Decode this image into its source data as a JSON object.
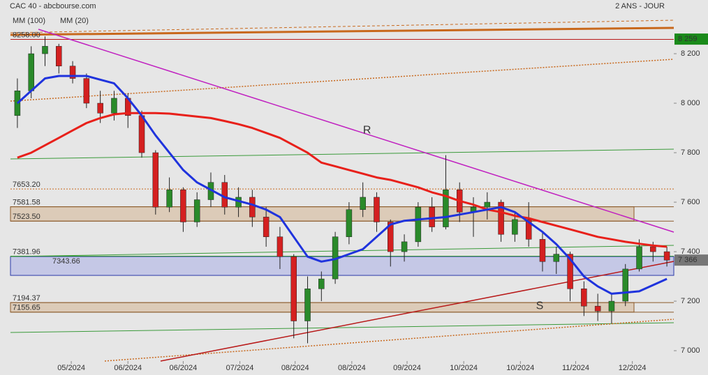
{
  "chart_data": {
    "type": "candlestick",
    "title": "CAC 40 - abcbourse.com",
    "subtitle": "2 ANS - JOUR",
    "x": [
      0.5,
      1.5,
      2.5,
      3.5,
      4.5,
      5.5,
      6.5,
      7.5,
      8.5,
      9.5,
      10.5,
      11.5,
      12.5,
      13.5,
      14.5,
      15.5,
      16.5,
      17.5,
      18.5,
      19.5,
      20.5,
      21.5,
      22.5,
      23.5,
      24.5,
      25.5,
      26.5,
      27.5,
      28.5,
      29.5,
      30.5,
      31.5,
      32.5,
      33.5,
      34.5,
      35.5,
      36.5,
      37.5,
      38.5,
      39.5,
      40.5,
      41.5,
      42.5,
      43.5,
      44.5,
      45.5,
      46.5,
      47.5
    ],
    "open": [
      7950,
      8050,
      8200,
      8230,
      8150,
      8100,
      8000,
      7960,
      8020,
      7950,
      7800,
      7580,
      7650,
      7520,
      7610,
      7680,
      7580,
      7620,
      7540,
      7460,
      7380,
      7120,
      7250,
      7290,
      7460,
      7570,
      7620,
      7520,
      7400,
      7440,
      7580,
      7500,
      7650,
      7560,
      7580,
      7600,
      7470,
      7530,
      7450,
      7360,
      7390,
      7250,
      7180,
      7160,
      7200,
      7330,
      7420,
      7400
    ],
    "high": [
      8100,
      8230,
      8270,
      8240,
      8170,
      8120,
      8050,
      8050,
      8040,
      7970,
      7810,
      7700,
      7660,
      7640,
      7720,
      7710,
      7660,
      7650,
      7580,
      7500,
      7390,
      7300,
      7320,
      7480,
      7600,
      7680,
      7640,
      7530,
      7470,
      7600,
      7620,
      7790,
      7680,
      7620,
      7640,
      7610,
      7560,
      7600,
      7480,
      7420,
      7400,
      7280,
      7230,
      7230,
      7350,
      7450,
      7440,
      7420
    ],
    "low": [
      7900,
      8020,
      8150,
      8120,
      8080,
      7980,
      7920,
      7930,
      7900,
      7780,
      7550,
      7560,
      7480,
      7500,
      7580,
      7550,
      7540,
      7500,
      7420,
      7330,
      7050,
      7030,
      7200,
      7270,
      7430,
      7540,
      7480,
      7340,
      7360,
      7420,
      7480,
      7490,
      7520,
      7460,
      7530,
      7440,
      7440,
      7420,
      7320,
      7310,
      7200,
      7140,
      7120,
      7110,
      7180,
      7320,
      7360,
      7340
    ],
    "close": [
      8050,
      8200,
      8230,
      8150,
      8100,
      8000,
      7960,
      8020,
      7950,
      7800,
      7580,
      7650,
      7520,
      7610,
      7680,
      7580,
      7620,
      7540,
      7460,
      7380,
      7120,
      7250,
      7290,
      7460,
      7570,
      7620,
      7520,
      7400,
      7440,
      7580,
      7500,
      7650,
      7560,
      7580,
      7600,
      7470,
      7530,
      7450,
      7360,
      7390,
      7250,
      7180,
      7160,
      7200,
      7330,
      7420,
      7400,
      7366
    ],
    "up_color": "#2a8a2a",
    "down_color": "#d42020",
    "series": [
      {
        "name": "MM (100)",
        "color": "#e8201a",
        "values": [
          7780,
          7800,
          7830,
          7860,
          7890,
          7920,
          7940,
          7955,
          7960,
          7960,
          7960,
          7958,
          7952,
          7946,
          7940,
          7928,
          7915,
          7900,
          7880,
          7860,
          7830,
          7800,
          7760,
          7745,
          7730,
          7715,
          7700,
          7690,
          7675,
          7660,
          7640,
          7625,
          7605,
          7590,
          7570,
          7560,
          7545,
          7535,
          7520,
          7505,
          7490,
          7475,
          7460,
          7450,
          7440,
          7432,
          7425,
          7420
        ]
      },
      {
        "name": "MM (20)",
        "color": "#1f33dd",
        "values": [
          8000,
          8050,
          8100,
          8110,
          8110,
          8110,
          8095,
          8080,
          8020,
          7950,
          7870,
          7800,
          7730,
          7680,
          7650,
          7620,
          7605,
          7590,
          7570,
          7540,
          7460,
          7380,
          7360,
          7370,
          7390,
          7410,
          7460,
          7510,
          7525,
          7530,
          7535,
          7540,
          7550,
          7560,
          7570,
          7580,
          7560,
          7520,
          7480,
          7430,
          7370,
          7300,
          7260,
          7230,
          7235,
          7240,
          7265,
          7290
        ]
      }
    ],
    "levels": [
      {
        "value": 8258,
        "label": "8258.00"
      },
      {
        "value": 7653.2,
        "label": "7653.20"
      },
      {
        "value": 7581.58,
        "label": "7581.58"
      },
      {
        "value": 7523.5,
        "label": "7523.50"
      },
      {
        "value": 7381.96,
        "label": "7381.96"
      },
      {
        "value": 7343.66,
        "label": "7343.66"
      },
      {
        "value": 7194.37,
        "label": "7194.37"
      },
      {
        "value": 7155.65,
        "label": "7155.65"
      }
    ],
    "top_price": {
      "value": 8259,
      "label": "8 259"
    },
    "last_price": {
      "value": 7366,
      "label": "7 366"
    },
    "annotations": [
      {
        "text": "R",
        "x": 25.8,
        "y": 7890
      },
      {
        "text": "S",
        "x": 38.3,
        "y": 7180
      }
    ],
    "xlim": [
      0,
      48
    ],
    "ylim": [
      6958,
      8417
    ],
    "xticks": [
      {
        "value": 4.4,
        "label": "05/2024"
      },
      {
        "value": 8.5,
        "label": "06/2024"
      },
      {
        "value": 12.5,
        "label": "06/2024"
      },
      {
        "value": 16.6,
        "label": "07/2024"
      },
      {
        "value": 20.6,
        "label": "08/2024"
      },
      {
        "value": 24.7,
        "label": "08/2024"
      },
      {
        "value": 28.7,
        "label": "09/2024"
      },
      {
        "value": 32.8,
        "label": "10/2024"
      },
      {
        "value": 36.9,
        "label": "10/2024"
      },
      {
        "value": 40.9,
        "label": "11/2024"
      },
      {
        "value": 45,
        "label": "12/2024"
      }
    ],
    "yticks": [
      {
        "value": 7000,
        "label": "7 000"
      },
      {
        "value": 7200,
        "label": "7 200"
      },
      {
        "value": 7400,
        "label": "7 400"
      },
      {
        "value": 7600,
        "label": "7 600"
      },
      {
        "value": 7800,
        "label": "7 800"
      },
      {
        "value": 8000,
        "label": "8 000"
      },
      {
        "value": 8200,
        "label": "8 200"
      }
    ]
  }
}
